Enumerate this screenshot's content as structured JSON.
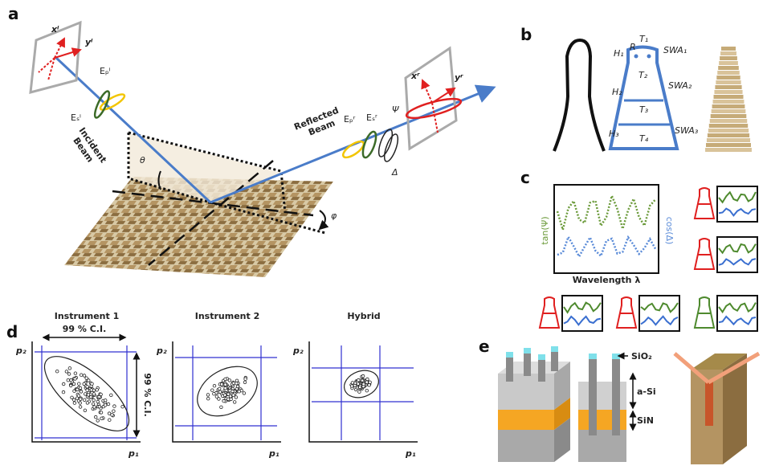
{
  "panel_a": {
    "label": "a",
    "x_i": "xⁱ",
    "y_i": "yⁱ",
    "E_p_i": "Eₚⁱ",
    "E_s_i": "Eₛⁱ",
    "incident_beam": [
      "Incident",
      "Beam"
    ],
    "theta": "θ",
    "reflected_beam": [
      "Reflected",
      "Beam"
    ],
    "E_p_r": "Eₚʳ",
    "E_s_r": "Eₛʳ",
    "psi": "Ψ",
    "delta": "Δ",
    "x_r": "xʳ",
    "y_r": "yʳ",
    "phi": "φ"
  },
  "panel_b": {
    "label": "b",
    "T1": "T₁",
    "R": "R",
    "SWA1": "SWA₁",
    "H1": "H₁",
    "T2": "T₂",
    "SWA2": "SWA₂",
    "H2": "H₂",
    "T3": "T₃",
    "H3": "H₃",
    "SWA3": "SWA₃",
    "T4": "T₄"
  },
  "panel_c": {
    "label": "c",
    "y_left": "tan(Ψ)",
    "y_right": "cos(Δ)",
    "x_label": "Wavelength λ"
  },
  "panel_d": {
    "label": "d",
    "plots": [
      {
        "title": "Instrument 1",
        "ci_top": "99 % C.I.",
        "ci_right": "99 % C.I.",
        "y_label": "p₂",
        "x_label": "p₁"
      },
      {
        "title": "Instrument 2",
        "y_label": "p₂",
        "x_label": "p₁"
      },
      {
        "title": "Hybrid",
        "y_label": "p₂",
        "x_label": "p₁"
      }
    ]
  },
  "panel_e": {
    "label": "e",
    "sio2": "SiO₂",
    "a_si": "a-Si",
    "sin": "SiN"
  }
}
